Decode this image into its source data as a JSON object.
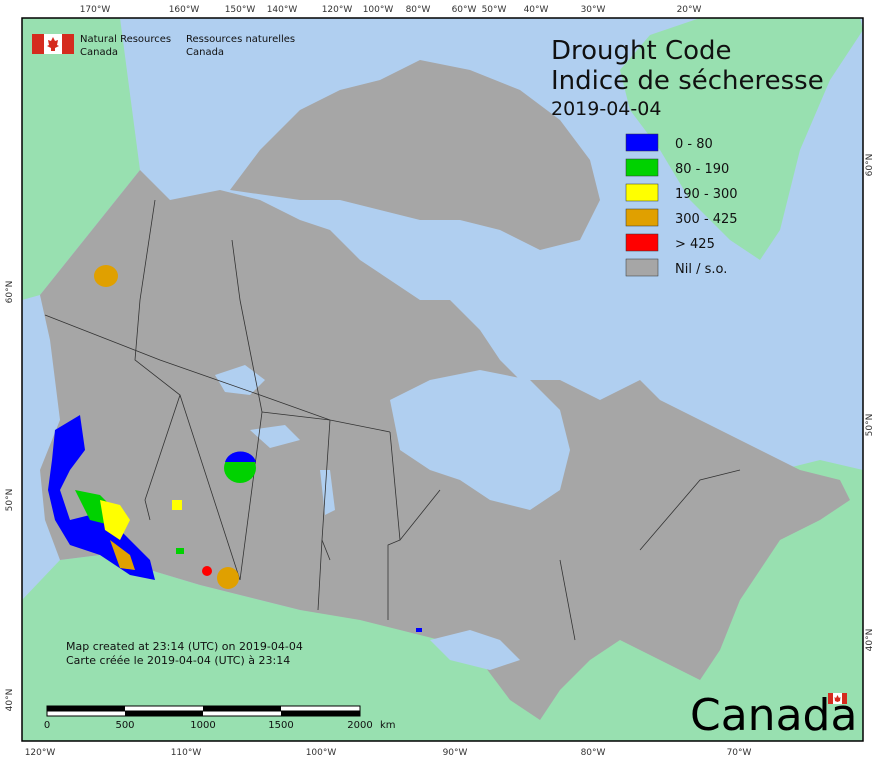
{
  "map": {
    "title_en": "Drought Code",
    "title_fr": "Indice de sécheresse",
    "date": "2019-04-04",
    "agency": {
      "en_line1": "Natural Resources",
      "en_line2": "Canada",
      "fr_line1": "Ressources naturelles",
      "fr_line2": "Canada"
    },
    "legend": [
      {
        "label": "0 - 80",
        "color": "#0000ff"
      },
      {
        "label": "80 - 190",
        "color": "#00d200"
      },
      {
        "label": "190 - 300",
        "color": "#ffff00"
      },
      {
        "label": "300 - 425",
        "color": "#e0a000"
      },
      {
        "label": "> 425",
        "color": "#ff0000"
      },
      {
        "label": "Nil / s.o.",
        "color": "#a6a6a6"
      }
    ],
    "created_en": "Map created at 23:14 (UTC) on 2019-04-04",
    "created_fr": "Carte créée le 2019-04-04 (UTC) à 23:14",
    "scale": {
      "labels": [
        "0",
        "500",
        "1000",
        "1500",
        "2000"
      ],
      "unit": "km"
    },
    "wordmark": "Canada",
    "top_ticks": [
      "170°W",
      "160°W",
      "150°W",
      "140°W",
      "120°W",
      "100°W",
      "80°W",
      "60°W",
      "50°W",
      "40°W",
      "30°W",
      "20°W"
    ],
    "bottom_ticks": [
      "120°W",
      "110°W",
      "100°W",
      "90°W",
      "80°W",
      "70°W"
    ],
    "left_ticks": [
      "60°N",
      "50°N",
      "40°N"
    ],
    "right_ticks": [
      "60°N",
      "50°N",
      "40°N"
    ],
    "colors": {
      "ocean": "#b0cff0",
      "land": "#98e0b0",
      "canada": "#a6a6a6",
      "border": "#333333"
    }
  }
}
